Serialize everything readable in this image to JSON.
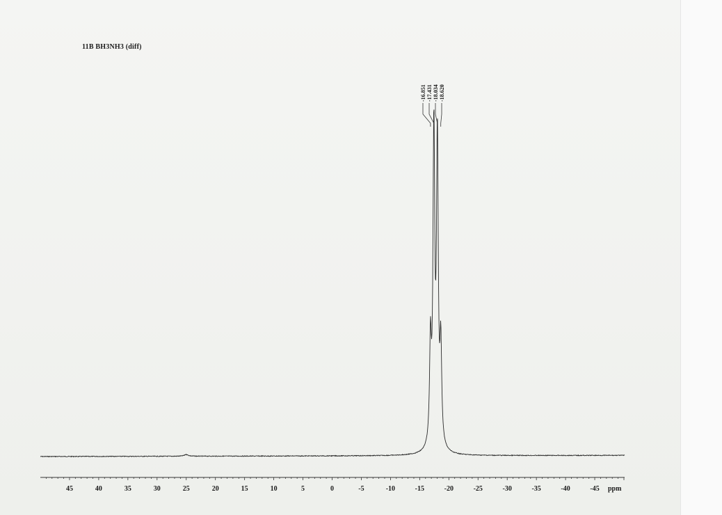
{
  "chart_data": {
    "type": "line",
    "title": "11B  BH3NH3  (diff)",
    "xlabel": "ppm",
    "xlim": [
      50,
      -50
    ],
    "x_reversed": true,
    "grid": false,
    "xticks": [
      45,
      40,
      35,
      30,
      25,
      20,
      15,
      10,
      5,
      0,
      -5,
      -10,
      -15,
      -20,
      -25,
      -30,
      -35,
      -40,
      -45
    ],
    "peak_labels": [
      "-16.851",
      "-17.431",
      "-18.034",
      "-18.620"
    ],
    "peaks": [
      {
        "x": -16.851,
        "y": 0.32
      },
      {
        "x": -17.431,
        "y": 1.0
      },
      {
        "x": -18.034,
        "y": 0.97
      },
      {
        "x": -18.62,
        "y": 0.31
      }
    ]
  }
}
